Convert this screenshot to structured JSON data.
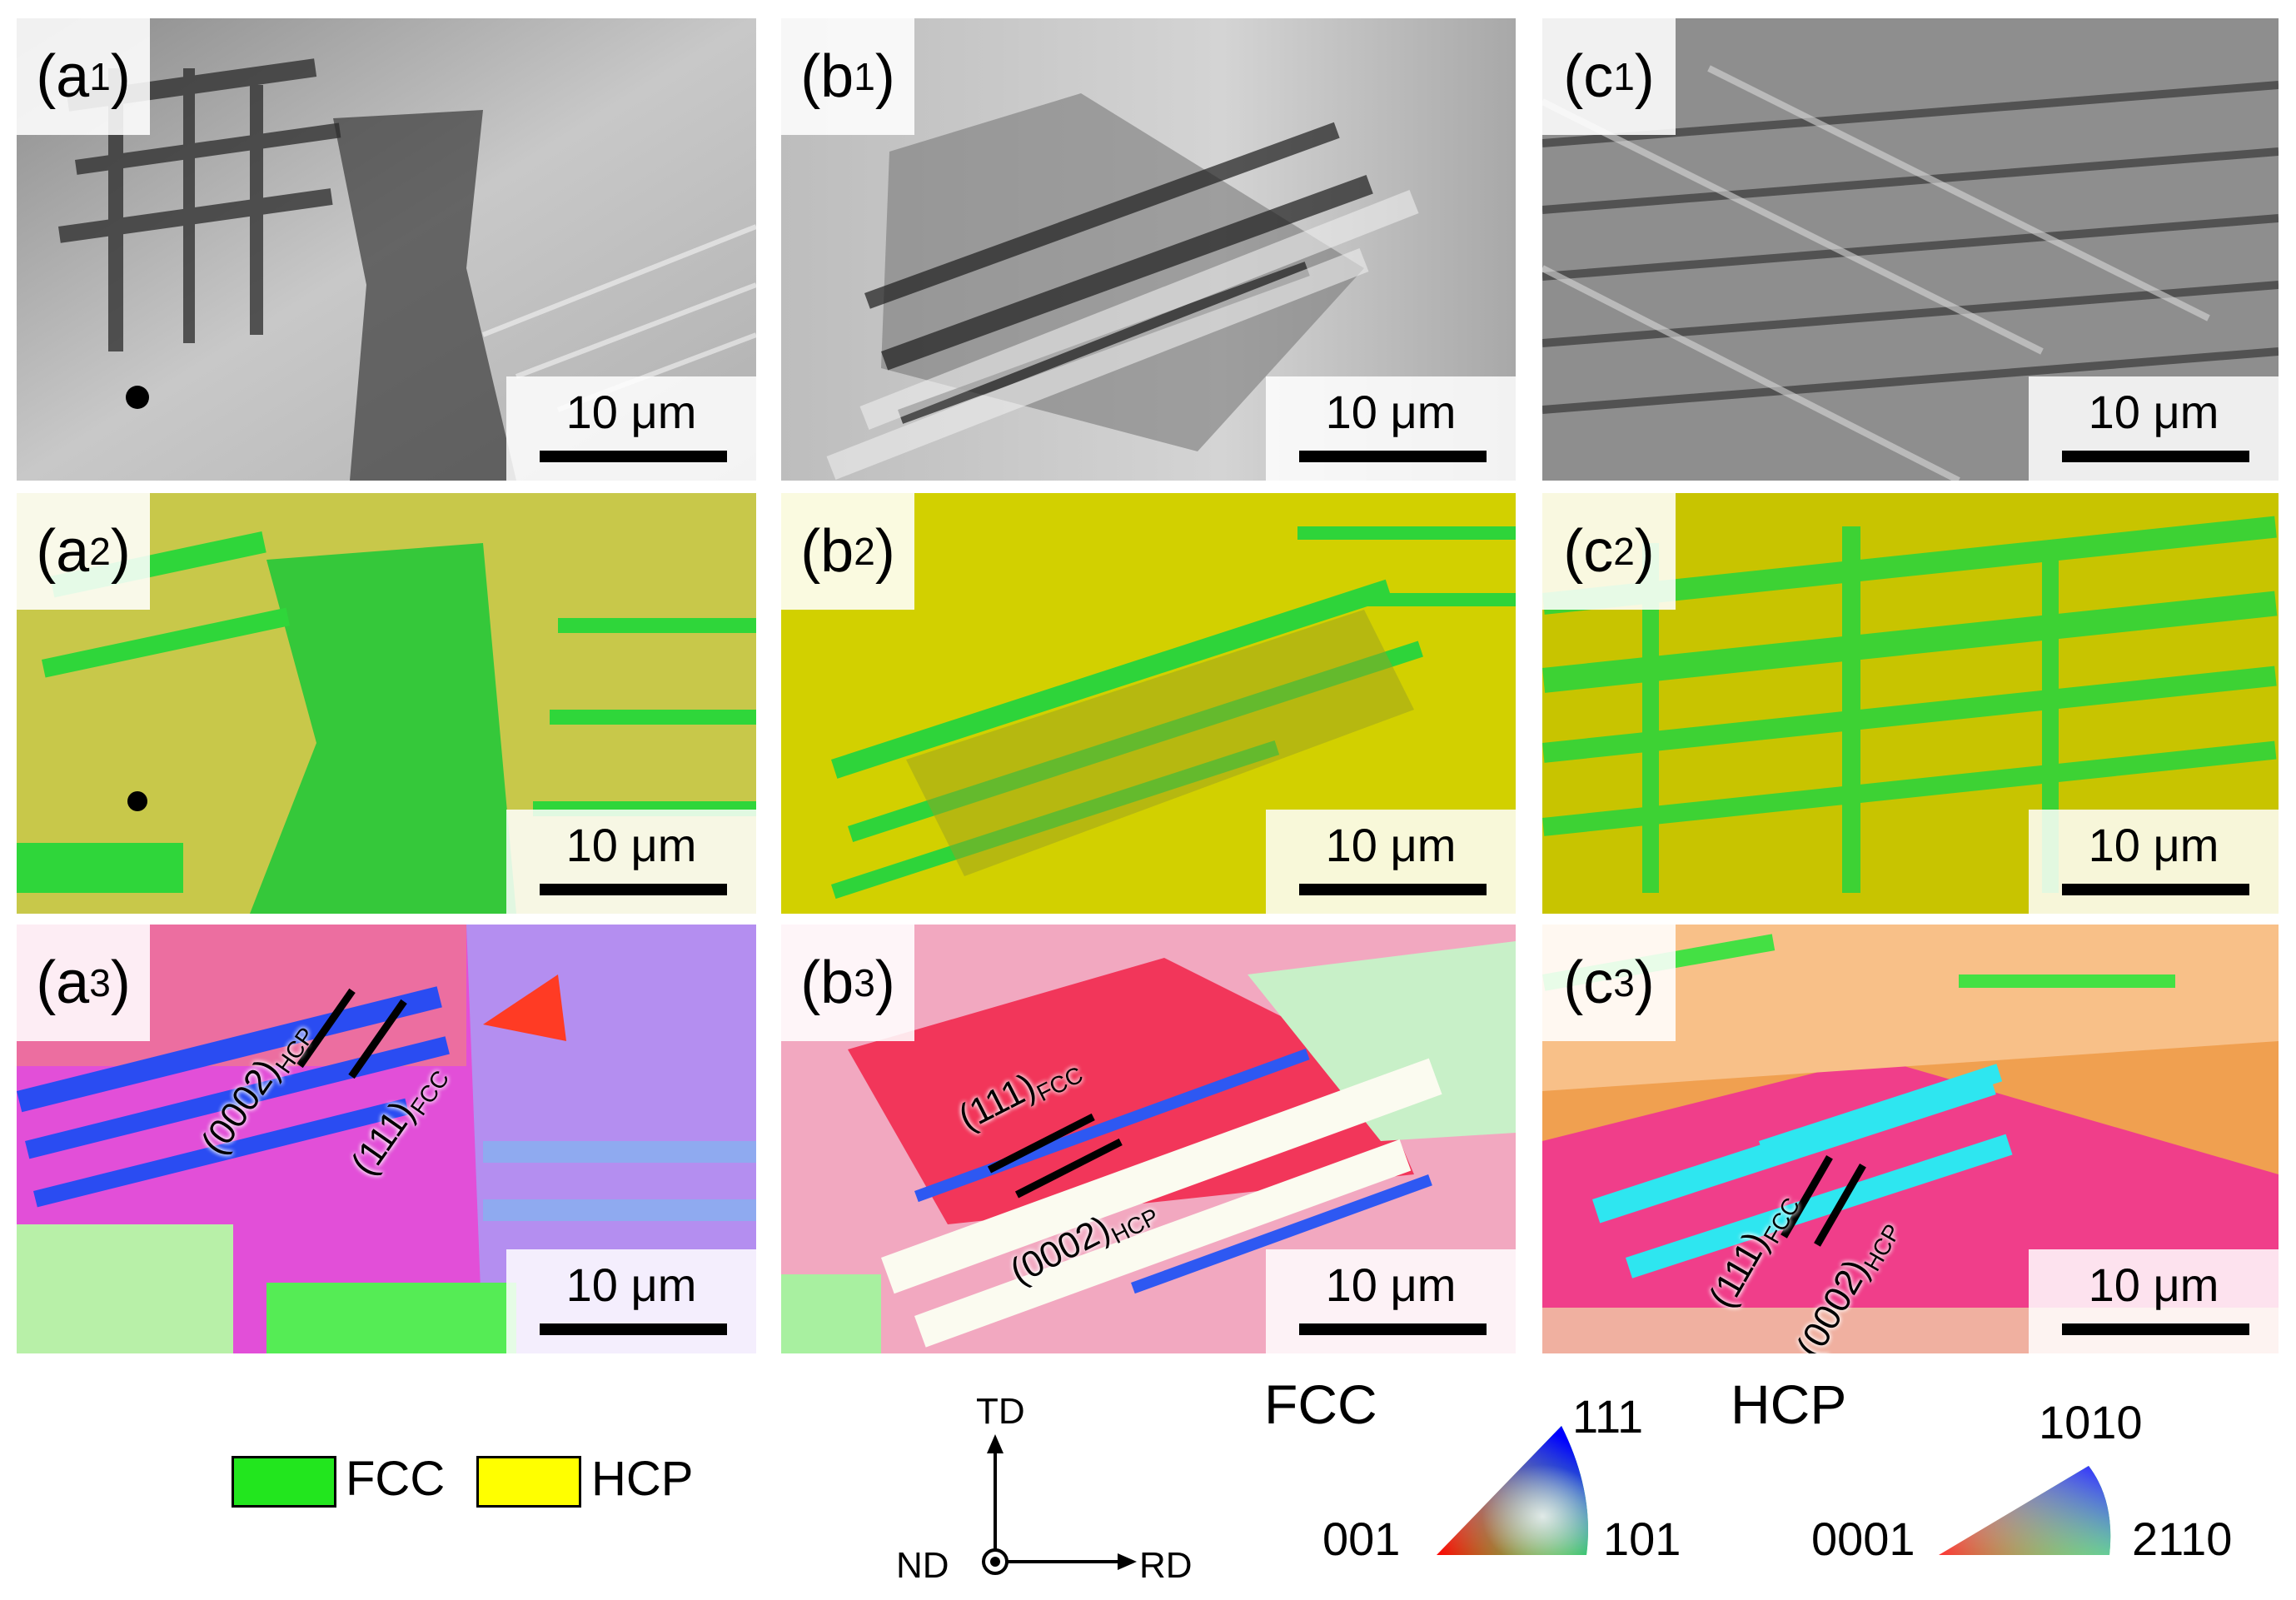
{
  "panels": [
    {
      "id": "a1",
      "letter": "(a",
      "sub": "1",
      "close": ")",
      "scale": "10 μm"
    },
    {
      "id": "b1",
      "letter": "(b",
      "sub": "1",
      "close": ")",
      "scale": "10 μm"
    },
    {
      "id": "c1",
      "letter": "(c",
      "sub": "1",
      "close": ")",
      "scale": "10 μm"
    },
    {
      "id": "a2",
      "letter": "(a",
      "sub": "2",
      "close": ")",
      "scale": "10 μm"
    },
    {
      "id": "b2",
      "letter": "(b",
      "sub": "2",
      "close": ")",
      "scale": "10 μm"
    },
    {
      "id": "c2",
      "letter": "(c",
      "sub": "2",
      "close": ")",
      "scale": "10 μm"
    },
    {
      "id": "a3",
      "letter": "(a",
      "sub": "3",
      "close": ")",
      "scale": "10 μm"
    },
    {
      "id": "b3",
      "letter": "(b",
      "sub": "3",
      "close": ")",
      "scale": "10 μm"
    },
    {
      "id": "c3",
      "letter": "(c",
      "sub": "3",
      "close": ")",
      "scale": "10 μm"
    }
  ],
  "annotations": {
    "plane_hcp_main": "(0002)",
    "plane_hcp_sub": "HCP",
    "plane_fcc_main": "(111)",
    "plane_fcc_sub": "FCC"
  },
  "legend": {
    "fcc_label": "FCC",
    "hcp_label": "HCP",
    "fcc_color": "#22e61e",
    "hcp_color": "#ffff00"
  },
  "axes": {
    "td": "TD",
    "nd": "ND",
    "rd": "RD"
  },
  "ipf": {
    "fcc_title": "FCC",
    "fcc_top": "111",
    "fcc_left": "001",
    "fcc_right": "101",
    "hcp_title": "HCP",
    "hcp_top": "1010",
    "hcp_left": "0001",
    "hcp_right": "2110"
  }
}
